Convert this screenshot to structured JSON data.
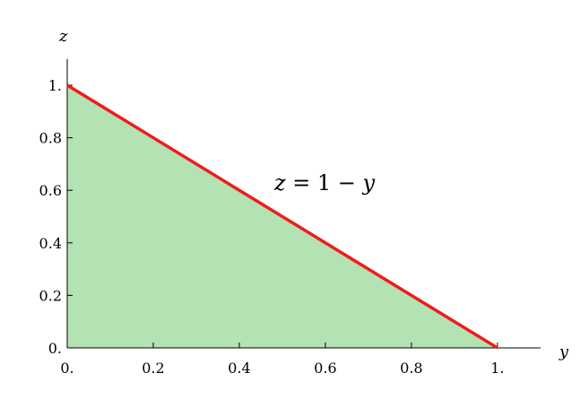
{
  "chart_data": {
    "type": "area",
    "title": "",
    "xlabel": "y",
    "ylabel": "z",
    "xlim": [
      0,
      1.1
    ],
    "ylim": [
      0,
      1.1
    ],
    "grid": false,
    "legend": "none",
    "x_ticks": [
      {
        "value": 0,
        "label": "0."
      },
      {
        "value": 0.2,
        "label": "0.2"
      },
      {
        "value": 0.4,
        "label": "0.4"
      },
      {
        "value": 0.6,
        "label": "0.6"
      },
      {
        "value": 0.8,
        "label": "0.8"
      },
      {
        "value": 1,
        "label": "1."
      }
    ],
    "y_ticks": [
      {
        "value": 0,
        "label": "0."
      },
      {
        "value": 0.2,
        "label": "0.2"
      },
      {
        "value": 0.4,
        "label": "0.4"
      },
      {
        "value": 0.6,
        "label": "0.6"
      },
      {
        "value": 0.8,
        "label": "0.8"
      },
      {
        "value": 1,
        "label": "1."
      }
    ],
    "series": [
      {
        "x": [
          0,
          1
        ],
        "y": [
          1,
          0
        ],
        "line_color": "#ee1c1c",
        "fill_color": "#b3e2b3"
      }
    ],
    "annotation": {
      "parts": [
        {
          "text": "z",
          "italic": true
        },
        {
          "text": " = 1 − ",
          "italic": false
        },
        {
          "text": "y",
          "italic": true
        }
      ],
      "x": 0.5,
      "y": 0.62
    }
  }
}
